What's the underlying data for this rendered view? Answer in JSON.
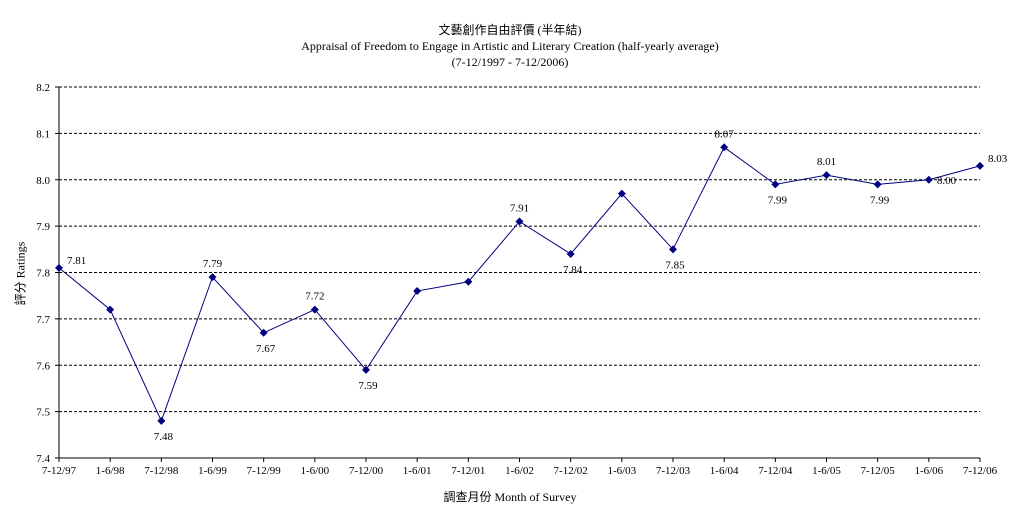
{
  "chart_data": {
    "type": "line",
    "title": "文藝創作自由評價 (半年結)",
    "subtitle": "Appraisal of Freedom to Engage in Artistic and Literary Creation (half-yearly average)",
    "period": "(7-12/1997 - 7-12/2006)",
    "xlabel": "調查月份 Month of Survey",
    "ylabel": "評分 Ratings",
    "ylim": [
      7.4,
      8.2
    ],
    "yticks": [
      "7.4",
      "7.5",
      "7.6",
      "7.7",
      "7.8",
      "7.9",
      "8.0",
      "8.1",
      "8.2"
    ],
    "grid": true,
    "categories": [
      "7-12/97",
      "1-6/98",
      "7-12/98",
      "1-6/99",
      "7-12/99",
      "1-6/00",
      "7-12/00",
      "1-6/01",
      "7-12/01",
      "1-6/02",
      "7-12/02",
      "1-6/03",
      "7-12/03",
      "1-6/04",
      "7-12/04",
      "1-6/05",
      "7-12/05",
      "1-6/06",
      "7-12/06"
    ],
    "series": [
      {
        "values": [
          7.81,
          7.72,
          7.48,
          7.79,
          7.67,
          7.72,
          7.59,
          7.76,
          7.78,
          7.91,
          7.84,
          7.97,
          7.85,
          8.07,
          7.99,
          8.01,
          7.99,
          8.0,
          8.03
        ],
        "data_labels": [
          "7.81",
          "",
          "7.48",
          "7.79",
          "7.67",
          "7.72",
          "7.59",
          "",
          "",
          "7.91",
          "7.84",
          "",
          "7.85",
          "8.07",
          "7.99",
          "8.01",
          "7.99",
          "8.00",
          "8.03"
        ],
        "color": "#000080"
      }
    ]
  }
}
